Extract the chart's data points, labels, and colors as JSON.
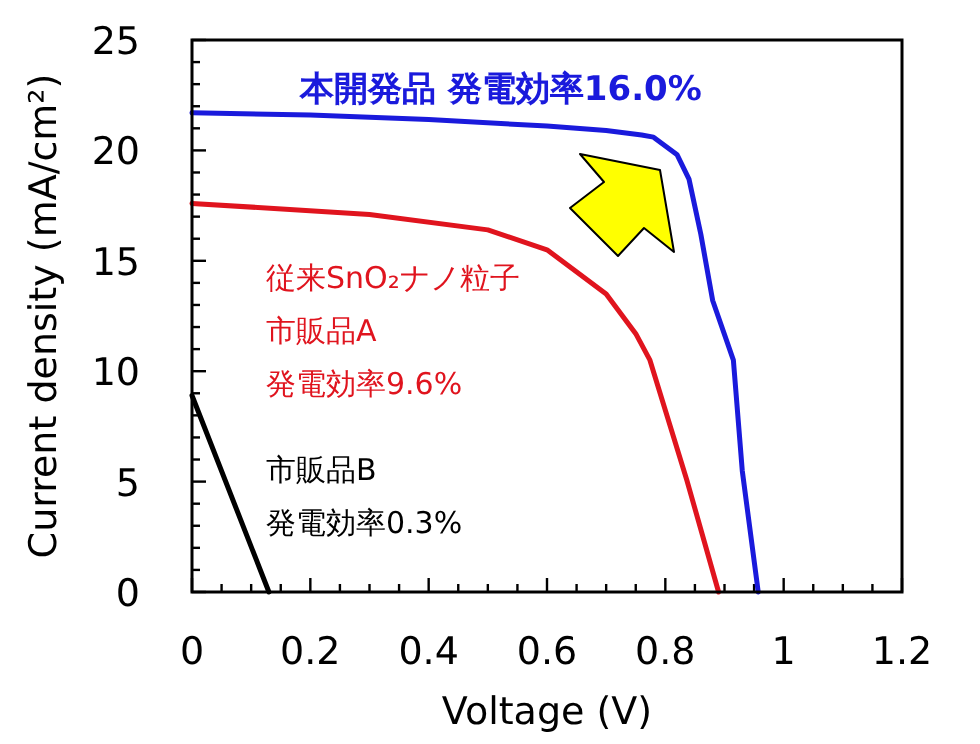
{
  "chart_data": {
    "type": "line",
    "xlabel": "Voltage (V)",
    "ylabel": "Current density (mA/cm²)",
    "xlim": [
      0,
      1.2
    ],
    "xticks": [
      0,
      0.2,
      0.4,
      0.6,
      0.8,
      1,
      1.2
    ],
    "ylim": [
      0,
      25
    ],
    "yticks": [
      0,
      5,
      10,
      15,
      20,
      25
    ],
    "grid": false,
    "marker": "none",
    "line_style": "solid",
    "annotations": [
      "従来SnO₂ナノ粒子",
      "市販品A",
      "発電効率9.6%",
      "市販品B",
      "発電効率0.3%"
    ],
    "series": [
      {
        "name": "本開発品 発電効率16.0%",
        "color": "#1a1adc",
        "x": [
          0,
          0.2,
          0.4,
          0.6,
          0.7,
          0.76,
          0.78,
          0.82,
          0.84,
          0.86,
          0.88,
          0.915,
          0.93,
          0.957
        ],
        "values": [
          21.7,
          21.6,
          21.4,
          21.1,
          20.9,
          20.7,
          20.6,
          19.8,
          18.7,
          16.2,
          13.2,
          10.5,
          5.5,
          0
        ]
      },
      {
        "color": "#e0141e",
        "x": [
          0,
          0.3,
          0.5,
          0.6,
          0.7,
          0.75,
          0.774,
          0.836,
          0.89
        ],
        "values": [
          17.6,
          17.1,
          16.4,
          15.5,
          13.5,
          11.7,
          10.5,
          5.1,
          0
        ]
      },
      {
        "color": "#000000",
        "x": [
          0,
          0.13
        ],
        "values": [
          8.9,
          0
        ]
      }
    ]
  }
}
